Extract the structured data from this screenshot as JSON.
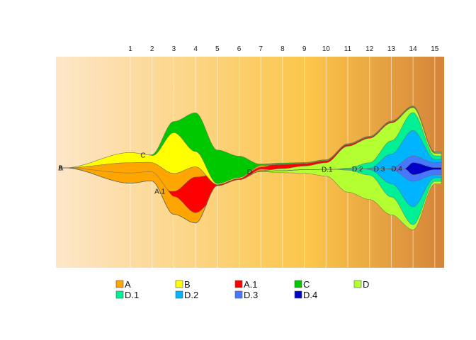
{
  "chart_data": {
    "type": "area",
    "title": "",
    "xlabel": "",
    "ylabel": "",
    "x_ticks": [
      "1",
      "2",
      "3",
      "4",
      "5",
      "6",
      "7",
      "8",
      "9",
      "10",
      "11",
      "12",
      "13",
      "14",
      "15"
    ],
    "background_gradient": [
      "#fde6c9",
      "#fcc64a",
      "#d4843a"
    ],
    "grid": true,
    "legend_position": "bottom",
    "series": [
      {
        "name": "A",
        "color": "#ffa500",
        "parent": null,
        "x": [
          -2,
          1,
          2,
          3,
          4,
          5,
          6,
          7,
          8,
          9,
          10,
          11,
          12,
          13,
          14,
          15
        ],
        "values": [
          0,
          40,
          36,
          80,
          110,
          2,
          2,
          10,
          8,
          5,
          4,
          3,
          2,
          2,
          1,
          1
        ]
      },
      {
        "name": "B",
        "color": "#ffff00",
        "parent": null,
        "x": [
          -2,
          1,
          2,
          3,
          4,
          5,
          6,
          7,
          8,
          9,
          10,
          11,
          12,
          13,
          14,
          15
        ],
        "values": [
          0,
          20,
          14,
          80,
          30,
          2,
          2,
          1,
          1,
          1,
          1,
          1,
          1,
          1,
          1,
          1
        ]
      },
      {
        "name": "A.1",
        "color": "#ff0000",
        "parent": "A",
        "x": [
          2.7,
          3,
          4,
          5,
          6,
          7,
          8,
          9,
          10,
          11
        ],
        "values": [
          0,
          10,
          70,
          44,
          5,
          4,
          16,
          6,
          26,
          6
        ]
      },
      {
        "name": "C",
        "color": "#00c800",
        "parent": null,
        "x": [
          1.8,
          3,
          4,
          5,
          6,
          7,
          8,
          9,
          10,
          11,
          12,
          13,
          14,
          15
        ],
        "values": [
          0,
          22,
          76,
          66,
          42,
          2,
          2,
          1,
          1,
          1,
          1,
          1,
          1,
          1
        ]
      },
      {
        "name": "D",
        "color": "#b4ff32",
        "parent": null,
        "x": [
          6.7,
          7,
          8,
          9,
          10,
          11,
          12,
          13,
          14,
          15
        ],
        "values": [
          0,
          2,
          8,
          14,
          26,
          90,
          120,
          180,
          240,
          60
        ]
      },
      {
        "name": "D.1",
        "color": "#00f096",
        "parent": "D",
        "x": [
          10.4,
          11,
          12,
          13,
          14,
          15
        ],
        "values": [
          0,
          4,
          24,
          110,
          220,
          50
        ]
      },
      {
        "name": "D.2",
        "color": "#00b4ff",
        "parent": "D",
        "x": [
          11.8,
          12,
          13,
          14,
          15
        ],
        "values": [
          0,
          3,
          58,
          150,
          36
        ]
      },
      {
        "name": "D.3",
        "color": "#4678ff",
        "parent": "D",
        "x": [
          12.8,
          13,
          14,
          15
        ],
        "values": [
          0,
          3,
          50,
          24
        ]
      },
      {
        "name": "D.4",
        "color": "#0000c8",
        "parent": "D",
        "x": [
          13.6,
          14,
          15
        ],
        "values": [
          0,
          24,
          4
        ]
      }
    ]
  }
}
